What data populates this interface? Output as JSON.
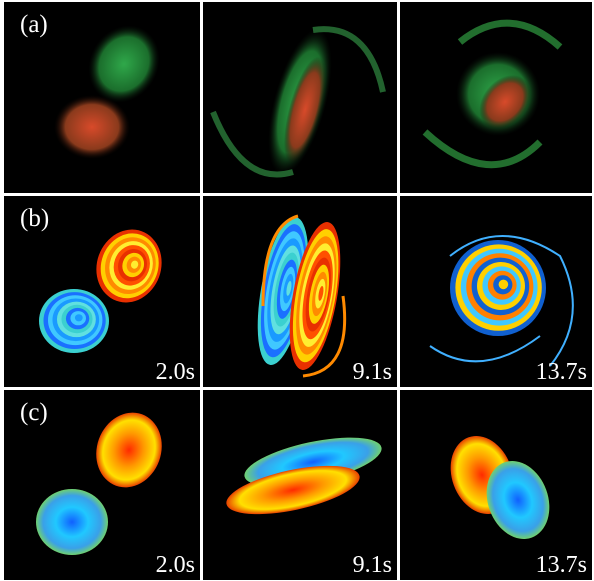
{
  "rows": [
    {
      "label": "(a)"
    },
    {
      "label": "(b)",
      "times": [
        "2.0s",
        "9.1s",
        "13.7s"
      ]
    },
    {
      "label": "(c)",
      "times": [
        "2.0s",
        "9.1s",
        "13.7s"
      ]
    }
  ]
}
